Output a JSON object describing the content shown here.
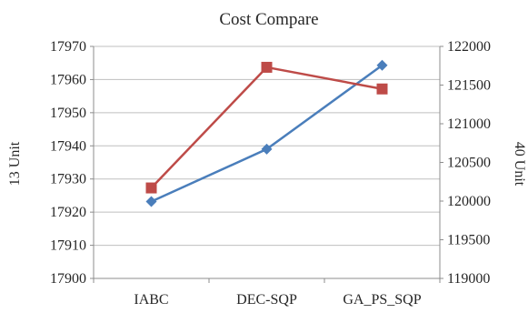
{
  "chart_data": {
    "type": "line",
    "title": "Cost Compare",
    "categories": [
      "IABC",
      "DEC-SQP",
      "GA_PS_SQP"
    ],
    "y_left": {
      "label": "13 Unit",
      "range": [
        17900,
        17970
      ],
      "ticks": [
        17900,
        17910,
        17920,
        17930,
        17940,
        17950,
        17960,
        17970
      ],
      "tick_labels": [
        "17900",
        "17910",
        "17920",
        "17930",
        "17940",
        "17950",
        "17960",
        "17970"
      ]
    },
    "y_right": {
      "label": "40 Unit",
      "range": [
        119000,
        122000
      ],
      "ticks": [
        119000,
        119500,
        120000,
        120500,
        121000,
        121500,
        122000
      ],
      "tick_labels": [
        "119000",
        "119500",
        "120000",
        "120500",
        "121000",
        "121500",
        "122000"
      ]
    },
    "grid": "horizontal",
    "legend": "none",
    "series": [
      {
        "axis": "left",
        "color": "#4a7ebb",
        "marker": "diamond",
        "values": [
          17923.2,
          17939,
          17964.3
        ]
      },
      {
        "axis": "right",
        "color": "#be4b48",
        "marker": "square",
        "values": [
          120170,
          121730,
          121450
        ]
      }
    ]
  }
}
